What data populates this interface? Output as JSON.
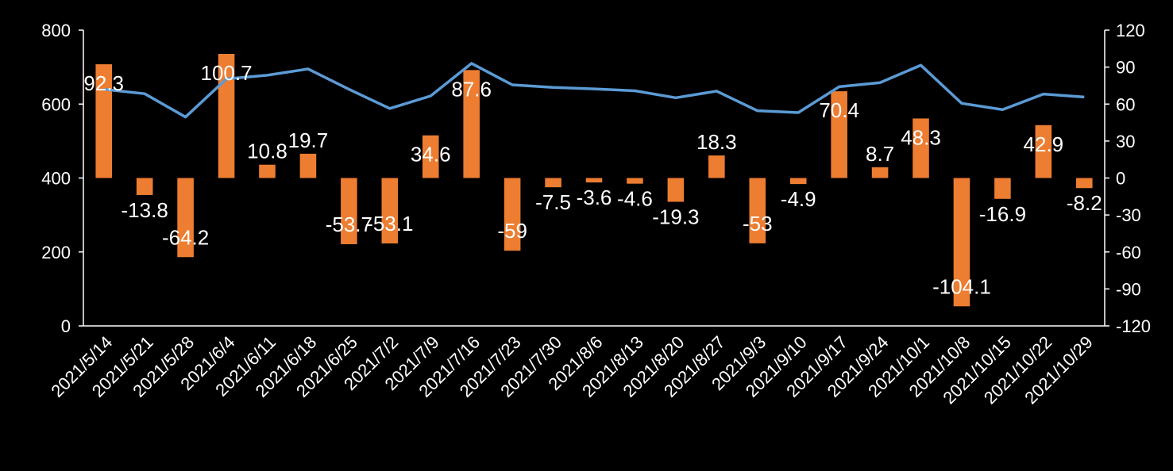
{
  "chart_data": {
    "type": "bar+line",
    "title": "",
    "categories": [
      "2021/5/14",
      "2021/5/21",
      "2021/5/28",
      "2021/6/4",
      "2021/6/11",
      "2021/6/18",
      "2021/6/25",
      "2021/7/2",
      "2021/7/9",
      "2021/7/16",
      "2021/7/23",
      "2021/7/30",
      "2021/8/6",
      "2021/8/13",
      "2021/8/20",
      "2021/8/27",
      "2021/9/3",
      "2021/9/10",
      "2021/9/17",
      "2021/9/24",
      "2021/10/1",
      "2021/10/8",
      "2021/10/15",
      "2021/10/22",
      "2021/10/29"
    ],
    "series": [
      {
        "name": "line",
        "type": "line",
        "axis": "left",
        "color": "#5B9BD5",
        "values": [
          640,
          628,
          565,
          668,
          678,
          695,
          640,
          588,
          622,
          710,
          652,
          645,
          641,
          636,
          617,
          635,
          582,
          577,
          647,
          658,
          705,
          602,
          585,
          627,
          619
        ]
      },
      {
        "name": "bar",
        "type": "bar",
        "axis": "right",
        "color": "#ED7D31",
        "values": [
          92.3,
          -13.8,
          -64.2,
          100.7,
          10.8,
          19.7,
          -53.7,
          -53.1,
          34.6,
          87.6,
          -59,
          -7.5,
          -3.6,
          -4.6,
          -19.3,
          18.3,
          -53,
          -4.9,
          70.4,
          8.7,
          48.3,
          -104.1,
          -16.9,
          42.9,
          -8.2
        ]
      }
    ],
    "data_labels": [
      "92.3",
      "-13.8",
      "-64.2",
      "100.7",
      "10.8",
      "19.7",
      "-53.7",
      "-53.1",
      "34.6",
      "87.6",
      "-59",
      "-7.5",
      "-3.6",
      "-4.6",
      "-19.3",
      "18.3",
      "-53",
      "-4.9",
      "70.4",
      "8.7",
      "48.3",
      "-104.1",
      "-16.9",
      "42.9",
      "-8.2"
    ],
    "y_left": {
      "ylim": [
        0,
        800
      ],
      "ticks": [
        "0",
        "200",
        "400",
        "600",
        "800"
      ]
    },
    "y_right": {
      "ylim": [
        -120,
        120
      ],
      "ticks": [
        "-120",
        "-90",
        "-60",
        "-30",
        "0",
        "30",
        "60",
        "90",
        "120"
      ]
    },
    "xlabel": "",
    "ylabel": "",
    "grid": false,
    "legend": "none"
  }
}
